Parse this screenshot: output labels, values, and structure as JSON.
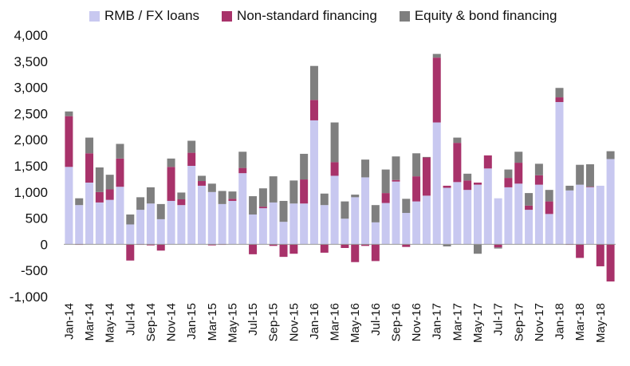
{
  "chart_data": {
    "type": "bar",
    "stacked": true,
    "title": "",
    "xlabel": "",
    "ylabel": "",
    "ylim": [
      -1000,
      4000
    ],
    "yticks": [
      "4,000",
      "3,500",
      "3,000",
      "2,500",
      "2,000",
      "1,500",
      "1,000",
      "500",
      "0",
      "-500",
      "-1,000"
    ],
    "ytick_values": [
      4000,
      3500,
      3000,
      2500,
      2000,
      1500,
      1000,
      500,
      0,
      -500,
      -1000
    ],
    "grid": false,
    "legend_position": "top",
    "categories": [
      "Jan-14",
      "Feb-14",
      "Mar-14",
      "Apr-14",
      "May-14",
      "Jun-14",
      "Jul-14",
      "Aug-14",
      "Sep-14",
      "Oct-14",
      "Nov-14",
      "Dec-14",
      "Jan-15",
      "Feb-15",
      "Mar-15",
      "Apr-15",
      "May-15",
      "Jun-15",
      "Jul-15",
      "Aug-15",
      "Sep-15",
      "Oct-15",
      "Nov-15",
      "Dec-15",
      "Jan-16",
      "Feb-16",
      "Mar-16",
      "Apr-16",
      "May-16",
      "Jun-16",
      "Jul-16",
      "Aug-16",
      "Sep-16",
      "Oct-16",
      "Nov-16",
      "Dec-16",
      "Jan-17",
      "Feb-17",
      "Mar-17",
      "Apr-17",
      "May-17",
      "Jun-17",
      "Jul-17",
      "Aug-17",
      "Sep-17",
      "Oct-17",
      "Nov-17",
      "Dec-17",
      "Jan-18",
      "Feb-18",
      "Mar-18",
      "Apr-18",
      "May-18",
      "Jun-18"
    ],
    "xticks_shown": [
      "Jan-14",
      "Mar-14",
      "May-14",
      "Jul-14",
      "Sep-14",
      "Nov-14",
      "Jan-15",
      "Mar-15",
      "May-15",
      "Jul-15",
      "Sep-15",
      "Nov-15",
      "Jan-16",
      "Mar-16",
      "May-16",
      "Jul-16",
      "Sep-16",
      "Nov-16",
      "Jan-17",
      "Mar-17",
      "May-17",
      "Jul-17",
      "Sep-17",
      "Nov-17",
      "Jan-18",
      "Mar-18",
      "May-18"
    ],
    "series": [
      {
        "name": "RMB / FX loans",
        "color": "#c8c8f0",
        "values": [
          1480,
          750,
          1180,
          800,
          850,
          1100,
          380,
          660,
          780,
          480,
          830,
          750,
          1500,
          1120,
          1000,
          770,
          830,
          1360,
          570,
          690,
          800,
          430,
          780,
          780,
          2370,
          750,
          1310,
          490,
          900,
          1280,
          420,
          790,
          1200,
          600,
          820,
          930,
          2330,
          1080,
          1190,
          1040,
          1140,
          1450,
          880,
          1090,
          1160,
          660,
          1140,
          580,
          2720,
          1030,
          1140,
          1090,
          1120,
          1630
        ]
      },
      {
        "name": "Non-standard financing",
        "color": "#a8326a",
        "values": [
          970,
          -10,
          560,
          200,
          200,
          540,
          -310,
          -10,
          -20,
          -120,
          650,
          110,
          250,
          90,
          -20,
          -10,
          40,
          100,
          -190,
          30,
          -30,
          -240,
          -180,
          460,
          390,
          -160,
          260,
          -70,
          -340,
          -30,
          -320,
          190,
          30,
          -50,
          480,
          730,
          1240,
          40,
          750,
          180,
          40,
          250,
          -60,
          180,
          400,
          80,
          180,
          240,
          90,
          -10,
          -260,
          10,
          -420,
          -710
        ]
      },
      {
        "name": "Equity & bond financing",
        "color": "#7f7f7f",
        "values": [
          90,
          130,
          300,
          470,
          280,
          280,
          190,
          240,
          310,
          290,
          160,
          130,
          230,
          100,
          160,
          250,
          140,
          310,
          350,
          350,
          500,
          400,
          440,
          490,
          650,
          220,
          760,
          330,
          50,
          340,
          330,
          450,
          450,
          270,
          440,
          10,
          70,
          -40,
          100,
          130,
          -180,
          0,
          -20,
          160,
          210,
          240,
          220,
          220,
          180,
          90,
          380,
          430,
          0,
          150
        ]
      }
    ]
  }
}
